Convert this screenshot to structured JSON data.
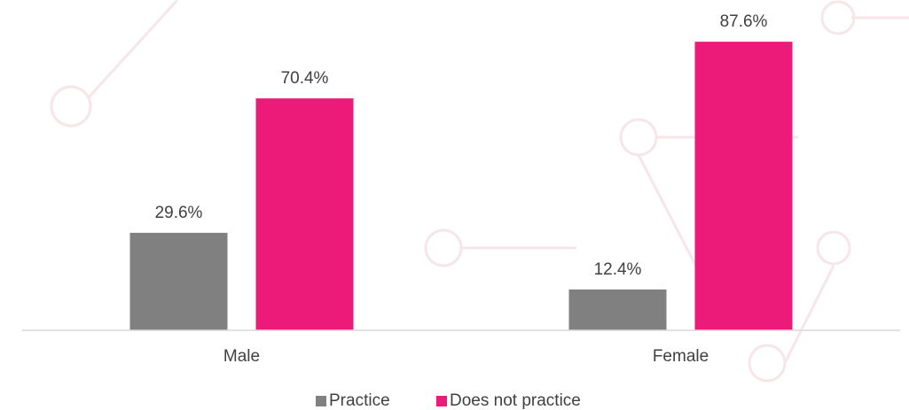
{
  "chart_data": {
    "type": "bar",
    "categories": [
      "Male",
      "Female"
    ],
    "series": [
      {
        "name": "Practice",
        "color": "#808080",
        "values": [
          29.6,
          12.4
        ],
        "value_labels": [
          "29.6%",
          "12.4%"
        ]
      },
      {
        "name": "Does not practice",
        "color": "#ec1a78",
        "values": [
          70.4,
          87.6
        ],
        "value_labels": [
          "70.4%",
          "87.6%"
        ]
      }
    ],
    "ylim": [
      0,
      100
    ],
    "legend": "bottom"
  }
}
